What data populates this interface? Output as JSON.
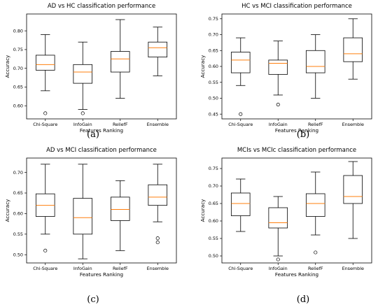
{
  "colors": {
    "box": "#000000",
    "median": "#ff7f0e",
    "frame": "#000000"
  },
  "chart_data": [
    {
      "type": "boxplot",
      "panel_label": "(a)",
      "title": "AD vs HC classification performance",
      "xlabel": "Features Ranking",
      "ylabel": "Accuracy",
      "ylim": [
        0.565,
        0.845
      ],
      "yticks": [
        "0.60",
        "0.65",
        "0.70",
        "0.75",
        "0.80"
      ],
      "ytick_values": [
        0.6,
        0.65,
        0.7,
        0.75,
        0.8
      ],
      "categories": [
        "Chi-Square",
        "InfoGain",
        "ReliefF",
        "Ensemble"
      ],
      "boxes": [
        {
          "whisker_low": 0.64,
          "q1": 0.695,
          "median": 0.71,
          "q3": 0.735,
          "whisker_high": 0.79,
          "outliers": [
            0.58
          ]
        },
        {
          "whisker_low": 0.59,
          "q1": 0.66,
          "median": 0.69,
          "q3": 0.71,
          "whisker_high": 0.77,
          "outliers": [
            0.58
          ]
        },
        {
          "whisker_low": 0.62,
          "q1": 0.69,
          "median": 0.725,
          "q3": 0.745,
          "whisker_high": 0.83,
          "outliers": []
        },
        {
          "whisker_low": 0.68,
          "q1": 0.73,
          "median": 0.755,
          "q3": 0.77,
          "whisker_high": 0.81,
          "outliers": []
        }
      ]
    },
    {
      "type": "boxplot",
      "panel_label": "(b)",
      "title": "HC vs MCI classification performance",
      "xlabel": "Features Ranking",
      "ylabel": "Accuracy",
      "ylim": [
        0.435,
        0.765
      ],
      "yticks": [
        "0.45",
        "0.50",
        "0.55",
        "0.60",
        "0.65",
        "0.70",
        "0.75"
      ],
      "ytick_values": [
        0.45,
        0.5,
        0.55,
        0.6,
        0.65,
        0.7,
        0.75
      ],
      "categories": [
        "Chi-Square",
        "InfoGain",
        "ReliefF",
        "Ensemble"
      ],
      "boxes": [
        {
          "whisker_low": 0.54,
          "q1": 0.58,
          "median": 0.62,
          "q3": 0.645,
          "whisker_high": 0.69,
          "outliers": [
            0.45
          ]
        },
        {
          "whisker_low": 0.51,
          "q1": 0.575,
          "median": 0.61,
          "q3": 0.62,
          "whisker_high": 0.68,
          "outliers": [
            0.48
          ]
        },
        {
          "whisker_low": 0.5,
          "q1": 0.58,
          "median": 0.6,
          "q3": 0.65,
          "whisker_high": 0.7,
          "outliers": []
        },
        {
          "whisker_low": 0.56,
          "q1": 0.615,
          "median": 0.64,
          "q3": 0.69,
          "whisker_high": 0.75,
          "outliers": []
        }
      ]
    },
    {
      "type": "boxplot",
      "panel_label": "(c)",
      "title": "AD vs MCI classification performance",
      "xlabel": "Features Ranking",
      "ylabel": "Accuracy",
      "ylim": [
        0.48,
        0.735
      ],
      "yticks": [
        "0.50",
        "0.55",
        "0.60",
        "0.65",
        "0.70"
      ],
      "ytick_values": [
        0.5,
        0.55,
        0.6,
        0.65,
        0.7
      ],
      "categories": [
        "Chi-Square",
        "InfoGain",
        "ReliefF",
        "Ensemble"
      ],
      "boxes": [
        {
          "whisker_low": 0.55,
          "q1": 0.593,
          "median": 0.62,
          "q3": 0.648,
          "whisker_high": 0.72,
          "outliers": [
            0.51
          ]
        },
        {
          "whisker_low": 0.49,
          "q1": 0.55,
          "median": 0.59,
          "q3": 0.637,
          "whisker_high": 0.72,
          "outliers": []
        },
        {
          "whisker_low": 0.51,
          "q1": 0.583,
          "median": 0.61,
          "q3": 0.64,
          "whisker_high": 0.68,
          "outliers": []
        },
        {
          "whisker_low": 0.58,
          "q1": 0.62,
          "median": 0.64,
          "q3": 0.67,
          "whisker_high": 0.72,
          "outliers": [
            0.54,
            0.53
          ]
        }
      ]
    },
    {
      "type": "boxplot",
      "panel_label": "(d)",
      "title": "MCIs vs MCIc classification performance",
      "xlabel": "Features Ranking",
      "ylabel": "Accuracy",
      "ylim": [
        0.48,
        0.78
      ],
      "yticks": [
        "0.50",
        "0.55",
        "0.60",
        "0.65",
        "0.70",
        "0.75"
      ],
      "ytick_values": [
        0.5,
        0.55,
        0.6,
        0.65,
        0.7,
        0.75
      ],
      "categories": [
        "Chi-Square",
        "InfoGain",
        "ReliefF",
        "Ensemble"
      ],
      "boxes": [
        {
          "whisker_low": 0.57,
          "q1": 0.615,
          "median": 0.65,
          "q3": 0.68,
          "whisker_high": 0.72,
          "outliers": []
        },
        {
          "whisker_low": 0.5,
          "q1": 0.58,
          "median": 0.595,
          "q3": 0.638,
          "whisker_high": 0.67,
          "outliers": [
            0.49
          ]
        },
        {
          "whisker_low": 0.56,
          "q1": 0.613,
          "median": 0.65,
          "q3": 0.678,
          "whisker_high": 0.74,
          "outliers": [
            0.51
          ]
        },
        {
          "whisker_low": 0.55,
          "q1": 0.65,
          "median": 0.67,
          "q3": 0.73,
          "whisker_high": 0.77,
          "outliers": []
        }
      ]
    }
  ]
}
